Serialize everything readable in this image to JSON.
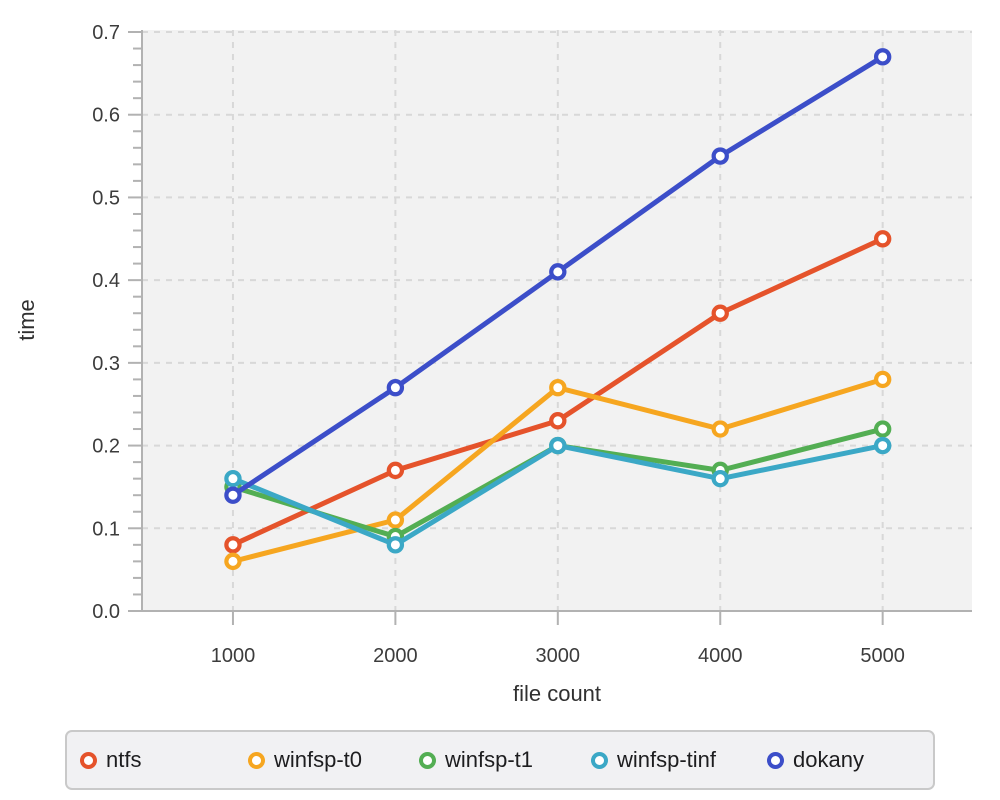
{
  "chart_data": {
    "type": "line",
    "title": "",
    "xlabel": "file count",
    "ylabel": "time",
    "x": [
      1000,
      2000,
      3000,
      4000,
      5000
    ],
    "x_tick_labels": [
      "1000",
      "2000",
      "3000",
      "4000",
      "5000"
    ],
    "y_ticks": [
      0.0,
      0.1,
      0.2,
      0.3,
      0.4,
      0.5,
      0.6,
      0.7
    ],
    "y_minor_tick_step": 0.02,
    "xlim": [
      440,
      5550
    ],
    "ylim": [
      0.0,
      0.7
    ],
    "grid": "dashed",
    "legend_position": "bottom",
    "series": [
      {
        "name": "ntfs",
        "color": "#E5532B",
        "values": [
          0.08,
          0.17,
          0.23,
          0.36,
          0.45
        ]
      },
      {
        "name": "winfsp-t0",
        "color": "#F6A620",
        "values": [
          0.06,
          0.11,
          0.27,
          0.22,
          0.28
        ]
      },
      {
        "name": "winfsp-t1",
        "color": "#53AE53",
        "values": [
          0.15,
          0.09,
          0.2,
          0.17,
          0.22
        ]
      },
      {
        "name": "winfsp-tinf",
        "color": "#3BA8C6",
        "values": [
          0.16,
          0.08,
          0.2,
          0.16,
          0.2
        ]
      },
      {
        "name": "dokany",
        "color": "#3C4EC9",
        "values": [
          0.14,
          0.27,
          0.41,
          0.55,
          0.67
        ]
      }
    ],
    "styles": {
      "plot_background": "#f2f2f2",
      "grid_color": "#d8d8d8",
      "axis_color": "#b2b2b2",
      "tick_label_color": "#3c3c3c",
      "marker_fill": "#ffffff"
    }
  }
}
